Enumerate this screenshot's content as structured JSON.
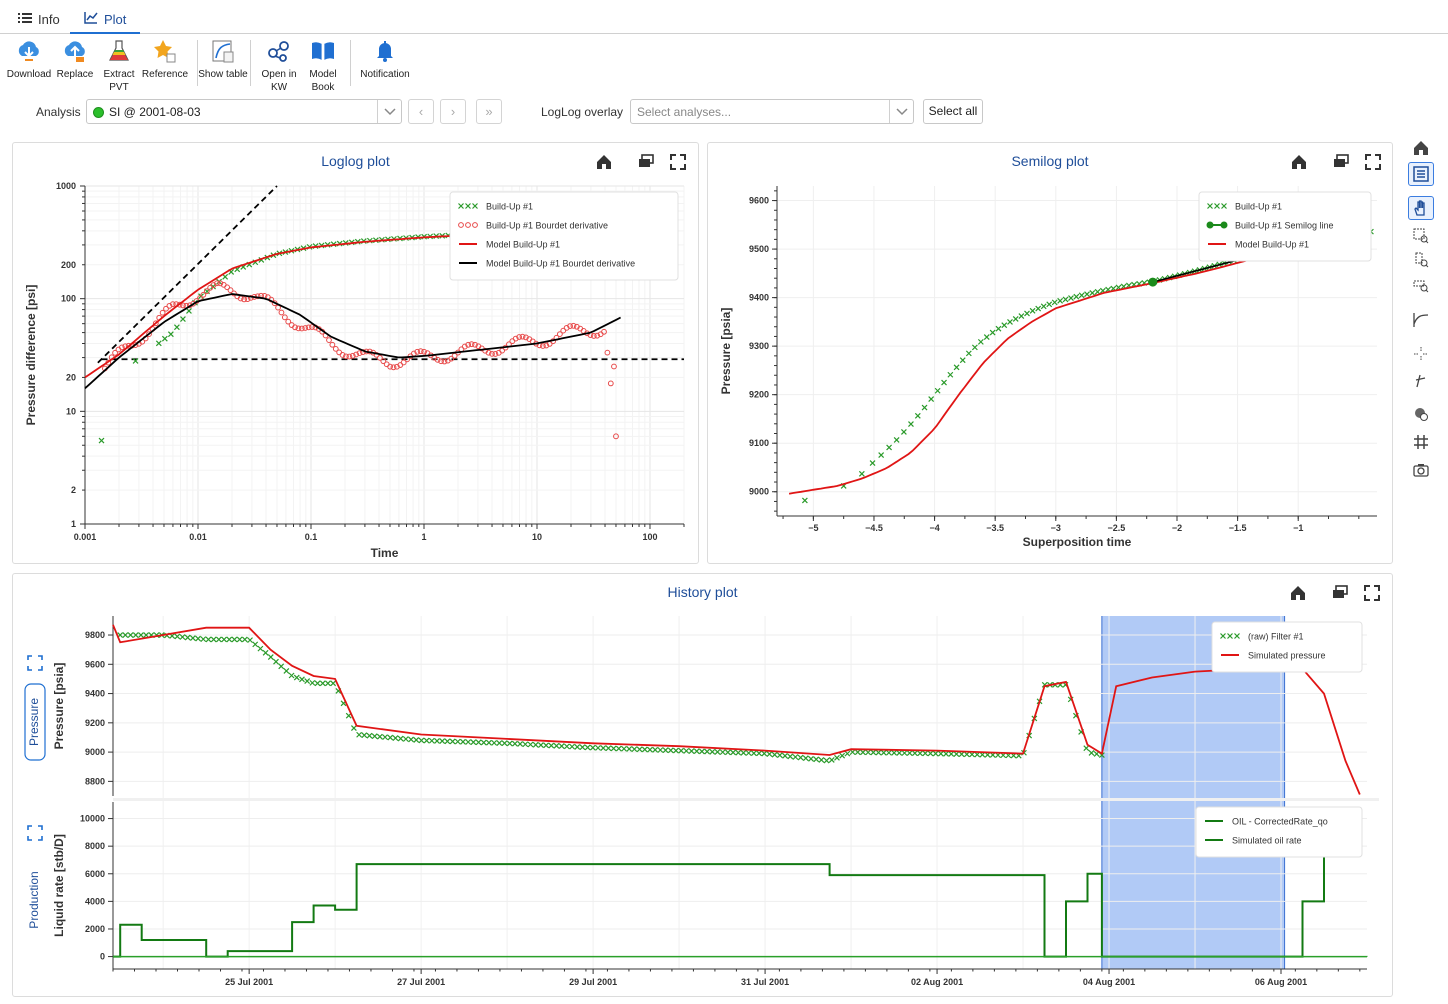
{
  "tabs": [
    {
      "label": "Info",
      "icon": "list-icon"
    },
    {
      "label": "Plot",
      "icon": "chart-line-icon",
      "active": true
    }
  ],
  "toolbar": {
    "download": "Download",
    "replace": "Replace",
    "extract_pvt": "Extract PVT",
    "reference": "Reference",
    "show_table": "Show table",
    "open_in_kw": "Open in KW",
    "model_book": "Model Book",
    "notification": "Notification"
  },
  "analysis": {
    "label": "Analysis",
    "value": "SI @ 2001-08-03",
    "status_color": "#2bbf2b",
    "loglog_overlay_label": "LogLog overlay",
    "loglog_overlay_placeholder": "Select analyses...",
    "select_all": "Select all"
  },
  "loglog": {
    "title": "Loglog plot",
    "legend": [
      "Build-Up #1",
      "Build-Up #1 Bourdet derivative",
      "Model Build-Up #1",
      "Model Build-Up #1 Bourdet derivative"
    ]
  },
  "semilog": {
    "title": "Semilog plot",
    "legend": [
      "Build-Up #1",
      "Build-Up #1 Semilog line",
      "Model Build-Up #1"
    ]
  },
  "history": {
    "title": "History plot",
    "pressure_tab": "Pressure",
    "production_tab": "Production",
    "pressure_legend": [
      "(raw) Filter #1",
      "Simulated pressure"
    ],
    "rate_legend": [
      "OIL - CorrectedRate_qo",
      "Simulated oil rate"
    ]
  },
  "colors": {
    "accent": "#1f4e99",
    "measured": "#2a9a2a",
    "model": "#e01515",
    "derivative": "#e84a4a",
    "model_derivative": "#000000",
    "rate": "#137a13",
    "selection": "#a9c4f5"
  },
  "chart_data": [
    {
      "type": "scatter",
      "title": "Loglog plot",
      "xlabel": "Time",
      "ylabel": "Pressure difference [psi]",
      "xscale": "log",
      "yscale": "log",
      "xlim": [
        0.001,
        200
      ],
      "ylim": [
        1,
        1000
      ],
      "xticks": [
        "0.001",
        "0.01",
        "0.1",
        "1",
        "10",
        "100"
      ],
      "yticks": [
        "1",
        "2",
        "10",
        "20",
        "100",
        "200",
        "1000"
      ],
      "legend_position": "top-right",
      "series": [
        {
          "name": "Build-Up #1",
          "style": "x-markers",
          "x": [
            0.0014,
            0.0028,
            0.006,
            0.01,
            0.02,
            0.05,
            0.1,
            0.3,
            1,
            3,
            10,
            30
          ],
          "y": [
            5.5,
            28,
            50,
            100,
            175,
            250,
            290,
            325,
            355,
            375,
            395,
            410
          ]
        },
        {
          "name": "Build-Up #1 Bourdet derivative",
          "style": "o-markers",
          "x": [
            0.0015,
            0.003,
            0.006,
            0.01,
            0.015,
            0.02,
            0.03,
            0.05,
            0.08,
            0.15,
            0.3,
            0.5,
            1,
            2,
            5,
            10,
            20,
            40,
            50
          ],
          "y": [
            24,
            45,
            80,
            110,
            120,
            118,
            110,
            80,
            60,
            40,
            30,
            28,
            30,
            33,
            38,
            42,
            50,
            55,
            6
          ]
        },
        {
          "name": "Model Build-Up #1",
          "style": "line",
          "x": [
            0.001,
            0.002,
            0.005,
            0.01,
            0.02,
            0.05,
            0.1,
            0.3,
            1,
            3,
            10,
            30
          ],
          "y": [
            20,
            32,
            70,
            120,
            185,
            250,
            285,
            320,
            350,
            372,
            392,
            408
          ]
        },
        {
          "name": "Model Build-Up #1 Bourdet derivative",
          "style": "line",
          "x": [
            0.001,
            0.002,
            0.005,
            0.01,
            0.02,
            0.04,
            0.08,
            0.15,
            0.3,
            0.6,
            1,
            3,
            10,
            30,
            55
          ],
          "y": [
            16,
            30,
            62,
            95,
            110,
            100,
            72,
            46,
            34,
            30,
            31,
            35,
            40,
            50,
            68
          ]
        }
      ]
    },
    {
      "type": "scatter",
      "title": "Semilog plot",
      "xlabel": "Superposition time",
      "ylabel": "Pressure [psia]",
      "xlim": [
        -5.3,
        -0.35
      ],
      "ylim": [
        8950,
        9630
      ],
      "xticks": [
        "-5",
        "-4.5",
        "-4",
        "-3.5",
        "-3",
        "-2.5",
        "-2",
        "-1.5",
        "-1"
      ],
      "yticks": [
        "9000",
        "9100",
        "9200",
        "9300",
        "9400",
        "9500",
        "9600"
      ],
      "legend_position": "top-right",
      "series": [
        {
          "name": "Build-Up #1",
          "style": "x-markers",
          "x": [
            -5.07,
            -4.75,
            -4.6,
            -4.5,
            -4.4,
            -4.3,
            -4.2,
            -4.1,
            -4.0,
            -3.9,
            -3.8,
            -3.7,
            -3.6,
            -3.5,
            -3.4,
            -3.3,
            -3.2,
            -3.1,
            -3.0,
            -2.8,
            -2.6,
            -2.4,
            -2.2,
            -2.0,
            -1.8,
            -1.6,
            -1.4,
            -1.2,
            -1.0,
            -0.8,
            -0.6
          ],
          "y": [
            8982,
            9012,
            9037,
            9062,
            9085,
            9110,
            9138,
            9168,
            9200,
            9232,
            9262,
            9290,
            9313,
            9332,
            9347,
            9360,
            9372,
            9382,
            9391,
            9404,
            9415,
            9425,
            9433,
            9445,
            9458,
            9472,
            9486,
            9500,
            9512,
            9524,
            9536
          ]
        },
        {
          "name": "Build-Up #1 Semilog line",
          "style": "line-dot",
          "x": [
            -2.2,
            -1.0
          ],
          "y": [
            9432,
            9510
          ]
        },
        {
          "name": "Model Build-Up #1",
          "style": "line",
          "x": [
            -5.2,
            -4.8,
            -4.6,
            -4.4,
            -4.2,
            -4.0,
            -3.8,
            -3.6,
            -3.4,
            -3.2,
            -3.0,
            -2.6,
            -2.2,
            -1.8,
            -1.4,
            -1.0,
            -0.6
          ],
          "y": [
            8996,
            9012,
            9027,
            9048,
            9080,
            9130,
            9200,
            9265,
            9315,
            9350,
            9378,
            9410,
            9430,
            9452,
            9478,
            9505,
            9532
          ]
        }
      ]
    },
    {
      "type": "line",
      "title": "History plot - pressure",
      "xlabel": "",
      "ylabel": "Pressure [psia]",
      "xlim": [
        "2001-07-23 10:00",
        "2001-08-07 00:00"
      ],
      "ylim": [
        8700,
        9930
      ],
      "xticks": [
        "25 Jul 2001",
        "27 Jul 2001",
        "29 Jul 2001",
        "31 Jul 2001",
        "02 Aug 2001",
        "04 Aug 2001",
        "06 Aug 2001"
      ],
      "yticks": [
        "8800",
        "9000",
        "9200",
        "9400",
        "9600",
        "9800"
      ],
      "selection_range": [
        "2001-08-03 22:00",
        "2001-08-06 01:00"
      ],
      "legend_position": "top-right",
      "series": [
        {
          "name": "(raw) Filter #1",
          "style": "x-markers",
          "x": [
            "2001-07-23 12:00",
            "2001-07-24 00:00",
            "2001-07-24 12:00",
            "2001-07-25 00:00",
            "2001-07-25 06:00",
            "2001-07-25 12:00",
            "2001-07-25 18:00",
            "2001-07-26 00:00",
            "2001-07-26 06:00",
            "2001-07-27 00:00",
            "2001-07-28 00:00",
            "2001-07-29 00:00",
            "2001-07-30 00:00",
            "2001-07-31 00:00",
            "2001-07-31 18:00",
            "2001-08-01 00:00",
            "2001-08-02 00:00",
            "2001-08-03 00:00",
            "2001-08-03 06:00",
            "2001-08-03 12:00",
            "2001-08-03 18:00",
            "2001-08-03 22:00"
          ],
          "y": [
            9800,
            9800,
            9770,
            9770,
            9650,
            9520,
            9470,
            9470,
            9120,
            9080,
            9060,
            9030,
            9010,
            8990,
            8940,
            9000,
            8990,
            8975,
            9460,
            9460,
            9000,
            8980
          ]
        },
        {
          "name": "Simulated pressure",
          "style": "line",
          "x": [
            "2001-07-23 10:00",
            "2001-07-23 12:00",
            "2001-07-24 00:00",
            "2001-07-24 12:00",
            "2001-07-25 00:00",
            "2001-07-25 06:00",
            "2001-07-25 12:00",
            "2001-07-25 18:00",
            "2001-07-26 00:00",
            "2001-07-26 06:00",
            "2001-07-27 00:00",
            "2001-07-28 00:00",
            "2001-07-29 00:00",
            "2001-07-30 00:00",
            "2001-07-31 00:00",
            "2001-07-31 18:00",
            "2001-08-01 00:00",
            "2001-08-02 00:00",
            "2001-08-03 00:00",
            "2001-08-03 06:00",
            "2001-08-03 12:00",
            "2001-08-03 18:00",
            "2001-08-03 22:00",
            "2001-08-04 02:00",
            "2001-08-04 12:00",
            "2001-08-05 00:00",
            "2001-08-05 12:00",
            "2001-08-06 00:00",
            "2001-08-06 06:00",
            "2001-08-06 12:00",
            "2001-08-06 18:00",
            "2001-08-06 22:00"
          ],
          "y": [
            9870,
            9750,
            9800,
            9850,
            9850,
            9700,
            9590,
            9520,
            9500,
            9180,
            9120,
            9090,
            9060,
            9040,
            9010,
            8980,
            9020,
            9010,
            8990,
            9450,
            9480,
            9050,
            8990,
            9450,
            9510,
            9550,
            9565,
            9580,
            9570,
            9400,
            8940,
            8710
          ]
        }
      ]
    },
    {
      "type": "line",
      "title": "History plot - rate",
      "xlabel": "",
      "ylabel": "Liquid rate [stb/D]",
      "xlim": [
        "2001-07-23 10:00",
        "2001-08-07 00:00"
      ],
      "ylim": [
        -900,
        11200
      ],
      "xticks": [
        "25 Jul 2001",
        "27 Jul 2001",
        "29 Jul 2001",
        "31 Jul 2001",
        "02 Aug 2001",
        "04 Aug 2001",
        "06 Aug 2001"
      ],
      "yticks": [
        "0",
        "2000",
        "4000",
        "6000",
        "8000",
        "10000"
      ],
      "legend_position": "top-right",
      "series": [
        {
          "name": "OIL - CorrectedRate_qo",
          "style": "step-line",
          "x": [
            "2001-07-23 10:00",
            "2001-07-23 12:00",
            "2001-07-23 18:00",
            "2001-07-24 12:00",
            "2001-07-24 18:00",
            "2001-07-25 06:00",
            "2001-07-25 12:00",
            "2001-07-25 18:00",
            "2001-07-26 00:00",
            "2001-07-26 06:00",
            "2001-07-31 18:00",
            "2001-08-03 06:00",
            "2001-08-03 12:00",
            "2001-08-03 18:00",
            "2001-08-03 22:00",
            "2001-08-06 01:00",
            "2001-08-06 06:00",
            "2001-08-06 12:00"
          ],
          "y": [
            0,
            2300,
            1200,
            0,
            400,
            400,
            2500,
            3700,
            3400,
            6700,
            5900,
            0,
            4000,
            6000,
            0,
            0,
            4000,
            9000
          ]
        },
        {
          "name": "Simulated oil rate",
          "style": "step-line",
          "x": [
            "2001-07-23 10:00",
            "2001-08-07 00:00"
          ],
          "y": [
            0,
            0
          ]
        }
      ]
    }
  ]
}
